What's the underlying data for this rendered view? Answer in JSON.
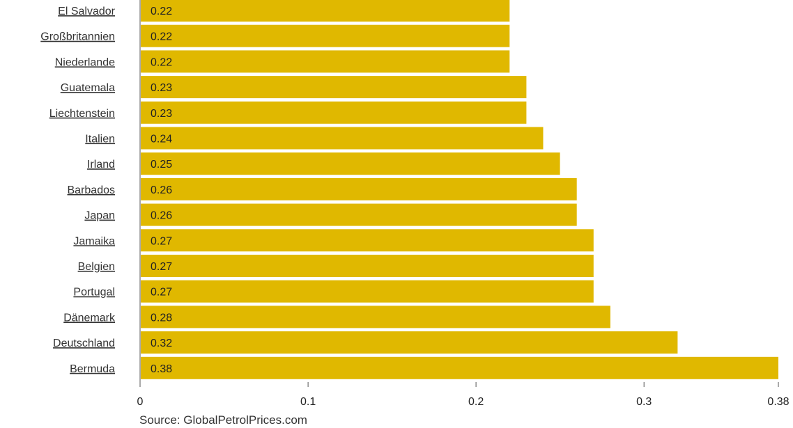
{
  "colors": {
    "bar": "#e0b800",
    "axis": "#555555",
    "background": "#ffffff"
  },
  "source": "Source: GlobalPetrolPrices.com",
  "chart_data": {
    "type": "bar",
    "orientation": "horizontal",
    "categories": [
      "El Salvador",
      "Großbritannien",
      "Niederlande",
      "Guatemala",
      "Liechtenstein",
      "Italien",
      "Irland",
      "Barbados",
      "Japan",
      "Jamaika",
      "Belgien",
      "Portugal",
      "Dänemark",
      "Deutschland",
      "Bermuda"
    ],
    "values": [
      0.22,
      0.22,
      0.22,
      0.23,
      0.23,
      0.24,
      0.25,
      0.26,
      0.26,
      0.27,
      0.27,
      0.27,
      0.28,
      0.32,
      0.38
    ],
    "value_labels": [
      "0.22",
      "0.22",
      "0.22",
      "0.23",
      "0.23",
      "0.24",
      "0.25",
      "0.26",
      "0.26",
      "0.27",
      "0.27",
      "0.27",
      "0.28",
      "0.32",
      "0.38"
    ],
    "x_ticks": [
      {
        "value": 0,
        "label": "0"
      },
      {
        "value": 0.1,
        "label": "0.1"
      },
      {
        "value": 0.2,
        "label": "0.2"
      },
      {
        "value": 0.3,
        "label": "0.3"
      },
      {
        "value": 0.38,
        "label": "0.38"
      }
    ],
    "xlim": [
      0,
      0.38
    ],
    "grid": false,
    "legend": "none"
  }
}
